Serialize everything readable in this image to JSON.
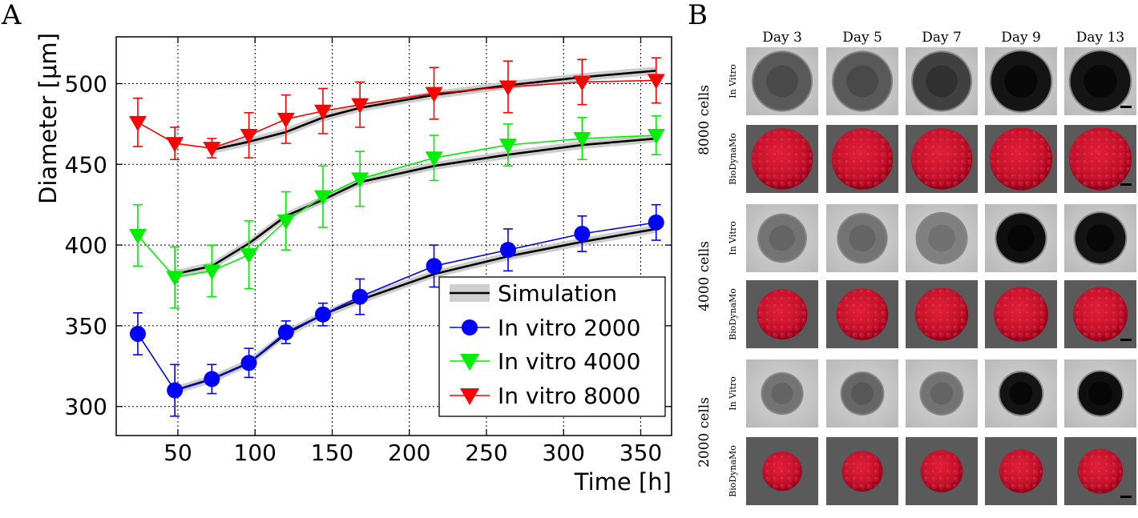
{
  "panel_a_label": "A",
  "panel_b_label": "B",
  "chart_data": {
    "type": "line",
    "title": "",
    "xlabel": "Time [h]",
    "ylabel": "Diameter [μm]",
    "xlim": [
      10,
      370
    ],
    "ylim": [
      282,
      529
    ],
    "xticks": [
      50,
      100,
      150,
      200,
      250,
      300,
      350
    ],
    "yticks": [
      300,
      350,
      400,
      450,
      500
    ],
    "grid": true,
    "legend_position": "bottom-right",
    "legend": [
      "Simulation",
      "In vitro 2000",
      "In vitro 4000",
      "In vitro 8000"
    ],
    "simulation": [
      {
        "name": "Simulation 2000",
        "x": [
          48,
          72,
          96,
          120,
          144,
          168,
          216,
          264,
          312,
          360
        ],
        "y": [
          310,
          317,
          327,
          345,
          357,
          366,
          382,
          393,
          402,
          410
        ],
        "band": 2.5
      },
      {
        "name": "Simulation 4000",
        "x": [
          48,
          72,
          96,
          120,
          144,
          168,
          216,
          264,
          312,
          360
        ],
        "y": [
          382,
          387,
          401,
          418,
          428,
          439,
          449,
          456,
          462,
          466
        ],
        "band": 2.5
      },
      {
        "name": "Simulation 8000",
        "x": [
          72,
          96,
          120,
          144,
          168,
          216,
          264,
          312,
          360
        ],
        "y": [
          459,
          464,
          470,
          479,
          485,
          493,
          499,
          504,
          508
        ],
        "band": 2.5
      }
    ],
    "series": [
      {
        "name": "In vitro 2000",
        "color": "#0000ff",
        "marker": "circle",
        "x": [
          24,
          48,
          72,
          96,
          120,
          144,
          168,
          216,
          264,
          312,
          360
        ],
        "y": [
          345,
          310,
          317,
          327,
          346,
          357,
          368,
          387,
          397,
          407,
          414
        ],
        "err": [
          13,
          16,
          9,
          9,
          7,
          7,
          11,
          13,
          13,
          11,
          11
        ]
      },
      {
        "name": "In vitro 4000",
        "color": "#00ee00",
        "marker": "triangle-down",
        "x": [
          24,
          48,
          72,
          96,
          120,
          144,
          168,
          216,
          264,
          312,
          360
        ],
        "y": [
          406,
          380,
          384,
          394,
          415,
          430,
          441,
          454,
          462,
          466,
          468
        ],
        "err": [
          19,
          19,
          16,
          21,
          18,
          19,
          17,
          14,
          13,
          13,
          12
        ]
      },
      {
        "name": "In vitro 8000",
        "color": "#ff0000",
        "marker": "triangle-down",
        "x": [
          24,
          48,
          72,
          96,
          120,
          144,
          168,
          216,
          264,
          312,
          360
        ],
        "y": [
          476,
          463,
          460,
          468,
          478,
          483,
          487,
          494,
          498,
          501,
          502
        ],
        "err": [
          15,
          10,
          6,
          14,
          15,
          14,
          14,
          16,
          16,
          14,
          14
        ]
      }
    ]
  },
  "panel_b": {
    "day_labels": [
      "Day 3",
      "Day 5",
      "Day 7",
      "Day 9",
      "Day 13"
    ],
    "groups": [
      {
        "label": "8000 cells",
        "rows": [
          "In Vitro",
          "BioDynaMo"
        ],
        "vitro_size": [
          0.85,
          0.85,
          0.85,
          0.88,
          0.88
        ],
        "sim_size": [
          0.9,
          0.9,
          0.9,
          0.92,
          0.92
        ],
        "darkness": [
          0.35,
          0.35,
          0.25,
          0.08,
          0.08
        ]
      },
      {
        "label": "4000 cells",
        "rows": [
          "In Vitro",
          "BioDynaMo"
        ],
        "vitro_size": [
          0.68,
          0.7,
          0.72,
          0.72,
          0.74
        ],
        "sim_size": [
          0.74,
          0.76,
          0.78,
          0.8,
          0.8
        ],
        "darkness": [
          0.45,
          0.45,
          0.5,
          0.06,
          0.08
        ]
      },
      {
        "label": "2000 cells",
        "rows": [
          "In Vitro",
          "BioDynaMo"
        ],
        "vitro_size": [
          0.58,
          0.6,
          0.6,
          0.62,
          0.64
        ],
        "sim_size": [
          0.58,
          0.6,
          0.62,
          0.64,
          0.66
        ],
        "darkness": [
          0.45,
          0.4,
          0.45,
          0.08,
          0.06
        ]
      }
    ]
  }
}
